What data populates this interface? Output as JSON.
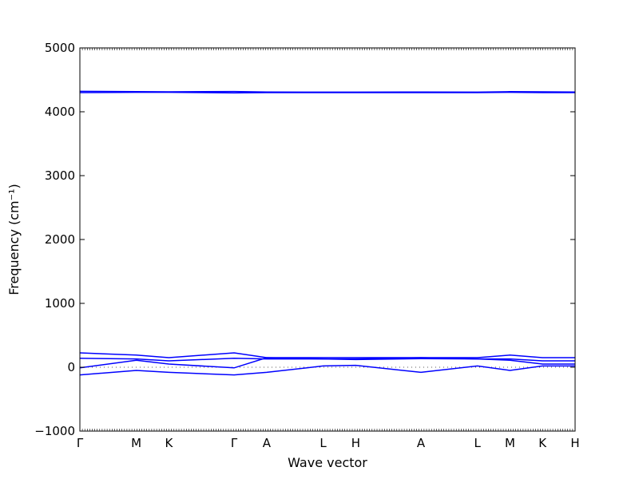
{
  "chart_data": {
    "type": "line",
    "xlabel": "Wave vector",
    "ylabel": "Frequency (cm⁻¹)",
    "ylim": [
      -1000,
      5000
    ],
    "yticks": [
      -1000,
      0,
      1000,
      2000,
      3000,
      4000,
      5000
    ],
    "x_tick_labels": [
      "Γ",
      "M",
      "K",
      "Γ",
      "A",
      "L",
      "H",
      "A",
      "L",
      "M",
      "K",
      "H"
    ],
    "x_tick_positions": [
      0,
      0.577,
      0.91,
      1.577,
      1.91,
      2.487,
      2.82,
      3.487,
      4.064,
      4.397,
      4.73,
      5.063
    ],
    "xlim": [
      0,
      5.063
    ],
    "grid": false,
    "line_color": "#0000ff",
    "zero_line_style": "dotted",
    "series": [
      {
        "x": [
          0,
          0.577,
          0.91,
          1.577,
          1.91,
          2.487,
          2.82,
          3.487,
          4.064,
          4.397,
          4.73,
          5.063
        ],
        "values": [
          4300,
          4305,
          4305,
          4295,
          4300,
          4300,
          4300,
          4300,
          4300,
          4305,
          4300,
          4300
        ]
      },
      {
        "x": [
          0,
          0.577,
          0.91,
          1.577,
          1.91,
          2.487,
          2.82,
          3.487,
          4.064,
          4.397,
          4.73,
          5.063
        ],
        "values": [
          4320,
          4315,
          4312,
          4318,
          4310,
          4308,
          4308,
          4310,
          4308,
          4315,
          4312,
          4310
        ]
      },
      {
        "x": [
          0,
          0.577,
          0.91,
          1.577,
          1.91,
          2.487,
          2.82,
          3.487,
          4.064,
          4.397,
          4.73,
          5.063
        ],
        "values": [
          225,
          190,
          150,
          225,
          150,
          150,
          150,
          150,
          150,
          190,
          150,
          150
        ]
      },
      {
        "x": [
          0,
          0.577,
          0.91,
          1.577,
          1.91,
          2.487,
          2.82,
          3.487,
          4.064,
          4.397,
          4.73,
          5.063
        ],
        "values": [
          140,
          130,
          100,
          140,
          130,
          130,
          120,
          135,
          130,
          130,
          100,
          100
        ]
      },
      {
        "x": [
          0,
          0.577,
          0.91,
          1.577,
          1.91,
          2.487,
          2.82,
          3.487,
          4.064,
          4.397,
          4.73,
          5.063
        ],
        "values": [
          -10,
          110,
          50,
          -10,
          150,
          130,
          130,
          150,
          130,
          110,
          50,
          50
        ]
      },
      {
        "x": [
          0,
          0.577,
          0.91,
          1.577,
          1.91,
          2.487,
          2.82,
          3.487,
          4.064,
          4.397,
          4.73,
          5.063
        ],
        "values": [
          -120,
          -50,
          -80,
          -120,
          -80,
          20,
          30,
          -80,
          20,
          -50,
          20,
          20
        ]
      }
    ]
  }
}
